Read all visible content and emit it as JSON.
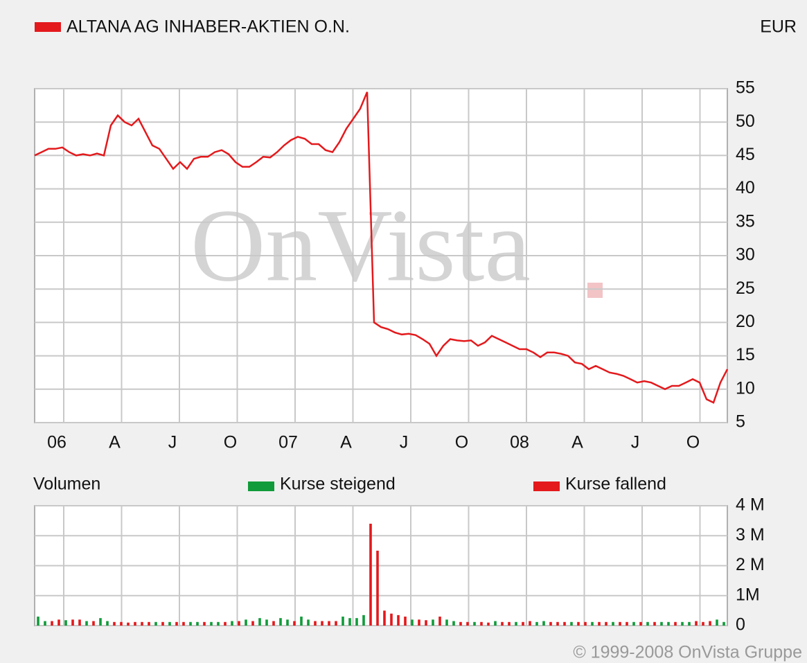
{
  "chart_data": [
    {
      "type": "line",
      "currency": "EUR",
      "watermark": "OnVista",
      "series": [
        {
          "name": "ALTANA AG INHABER-AKTIEN O.N.",
          "color": "#e3191c",
          "values": [
            45,
            45.5,
            46,
            46,
            46.2,
            45.5,
            45,
            45.2,
            45,
            45.3,
            45,
            49.5,
            51,
            50,
            49.5,
            50.5,
            48.5,
            46.5,
            46,
            44.5,
            43,
            44,
            43,
            44.5,
            44.8,
            44.8,
            45.5,
            45.8,
            45.2,
            44,
            43.3,
            43.3,
            44,
            44.8,
            44.7,
            45.5,
            46.5,
            47.3,
            47.8,
            47.5,
            46.7,
            46.7,
            45.8,
            45.5,
            47,
            49,
            50.5,
            52,
            54.5,
            20,
            19.3,
            19,
            18.5,
            18.2,
            18.3,
            18.1,
            17.5,
            16.8,
            15,
            16.5,
            17.5,
            17.3,
            17.2,
            17.3,
            16.5,
            17,
            18,
            17.5,
            17,
            16.5,
            16,
            16,
            15.5,
            14.8,
            15.5,
            15.5,
            15.3,
            15,
            14,
            13.8,
            13,
            13.5,
            13,
            12.5,
            12.3,
            12,
            11.5,
            11,
            11.2,
            11,
            10.5,
            10,
            10.5,
            10.5,
            11,
            11.5,
            11,
            8.5,
            8,
            11,
            13
          ]
        }
      ],
      "x_labels": [
        "06",
        "A",
        "J",
        "O",
        "07",
        "A",
        "J",
        "O",
        "08",
        "A",
        "J",
        "O"
      ],
      "ylim": [
        5,
        55
      ],
      "yticks": [
        5,
        10,
        15,
        20,
        25,
        30,
        35,
        40,
        45,
        50,
        55
      ],
      "grid": true
    },
    {
      "type": "bar",
      "title": "Volumen",
      "series": [
        {
          "name": "Kurse steigend",
          "color": "#119b3a",
          "values": [
            0.3,
            0.15,
            null,
            null,
            0.18,
            null,
            null,
            0.15,
            null,
            0.25,
            0.15,
            null,
            null,
            null,
            null,
            null,
            null,
            0.12,
            null,
            0.12,
            null,
            null,
            0.12,
            0.12,
            null,
            0.12,
            0.12,
            null,
            0.15,
            null,
            0.2,
            null,
            0.25,
            0.2,
            null,
            0.25,
            0.2,
            null,
            0.3,
            0.2,
            null,
            null,
            null,
            null,
            0.3,
            0.25,
            0.25,
            0.35,
            null,
            null,
            null,
            null,
            null,
            null,
            0.2,
            null,
            null,
            0.2,
            null,
            0.2,
            0.15,
            null,
            null,
            0.12,
            null,
            null,
            0.15,
            null,
            null,
            0.12,
            null,
            null,
            0.12,
            0.15,
            null,
            null,
            null,
            0.12,
            null,
            null,
            0.12,
            null,
            null,
            0.12,
            null,
            null,
            0.12,
            null,
            0.12,
            null,
            0.12,
            0.12,
            null,
            0.12,
            0.12,
            null,
            null,
            null,
            0.2,
            0.12
          ]
        },
        {
          "name": "Kurse fallend",
          "color": "#e3191c",
          "values": [
            null,
            null,
            0.15,
            0.2,
            null,
            0.2,
            0.2,
            null,
            0.15,
            null,
            null,
            0.12,
            0.12,
            0.1,
            0.12,
            0.12,
            0.12,
            null,
            0.12,
            null,
            0.12,
            0.12,
            null,
            null,
            0.12,
            null,
            null,
            0.12,
            null,
            0.15,
            null,
            0.15,
            null,
            null,
            0.15,
            null,
            null,
            0.15,
            null,
            null,
            0.15,
            0.15,
            0.15,
            0.15,
            null,
            null,
            null,
            null,
            3.4,
            2.5,
            0.5,
            0.4,
            0.35,
            0.3,
            null,
            0.2,
            0.18,
            null,
            0.3,
            null,
            null,
            0.12,
            0.12,
            null,
            0.12,
            0.1,
            null,
            0.12,
            0.12,
            null,
            0.12,
            0.15,
            null,
            null,
            0.12,
            0.12,
            0.12,
            null,
            0.12,
            0.12,
            null,
            0.12,
            0.12,
            null,
            0.12,
            0.12,
            null,
            0.12,
            null,
            0.12,
            null,
            null,
            0.12,
            null,
            null,
            0.15,
            0.12,
            0.15,
            null,
            null
          ]
        }
      ],
      "ylim": [
        0,
        4
      ],
      "yticks": [
        0,
        {
          "value": 1,
          "label": "1M"
        },
        {
          "value": 2,
          "label": "2 M"
        },
        {
          "value": 3,
          "label": "3 M"
        },
        {
          "value": 4,
          "label": "4 M"
        }
      ],
      "grid": true,
      "footer": "© 1999-2008 OnVista Gruppe"
    }
  ]
}
